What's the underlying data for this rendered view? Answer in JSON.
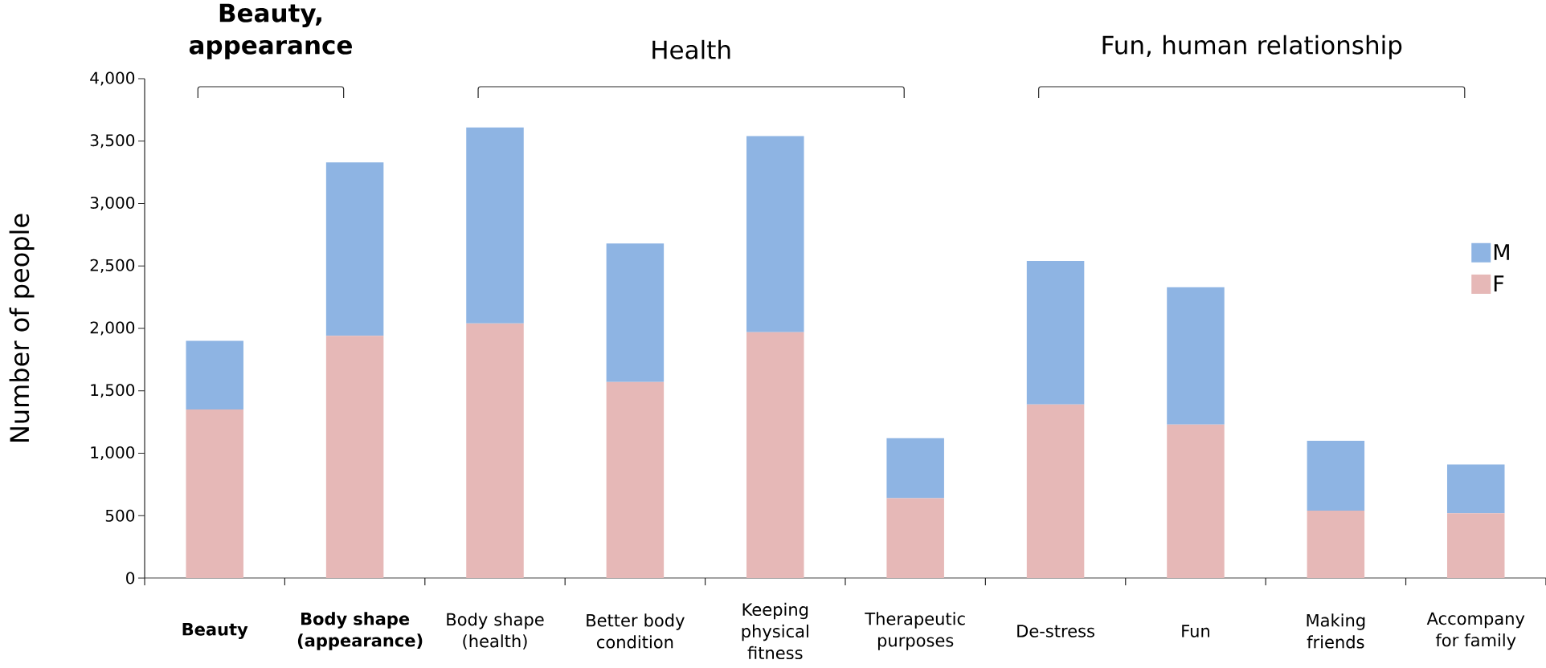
{
  "chart_data": {
    "type": "bar",
    "stacked": true,
    "categories": [
      "Beauty",
      "Body shape (appearance)",
      "Body shape (health)",
      "Better body condition",
      "Keeping physical fitness",
      "Therapeutic purposes",
      "De-stress",
      "Fun",
      "Making friends",
      "Accompany for family"
    ],
    "series": [
      {
        "name": "F",
        "color": "#e6b8b7",
        "values": [
          1350,
          1940,
          2040,
          1570,
          1970,
          640,
          1390,
          1230,
          540,
          520
        ]
      },
      {
        "name": "M",
        "color": "#8eb4e3",
        "values": [
          550,
          1390,
          1570,
          1110,
          1570,
          480,
          1150,
          1100,
          560,
          390
        ]
      }
    ],
    "ylabel": "Number of people",
    "ylim": [
      0,
      4000
    ],
    "yticks": [
      0,
      500,
      {
        "value": 1000,
        "label": "1,000"
      },
      {
        "value": 1500,
        "label": "1,500"
      },
      {
        "value": 2000,
        "label": "2,000"
      },
      {
        "value": 2500,
        "label": "2,500"
      },
      {
        "value": 3000,
        "label": "3,000"
      },
      {
        "value": 3500,
        "label": "3,500"
      },
      {
        "value": 4000,
        "label": "4,000"
      }
    ],
    "legend": "right",
    "annotations": [
      "Beauty, appearance",
      "Health",
      "Fun, human relationship"
    ]
  }
}
